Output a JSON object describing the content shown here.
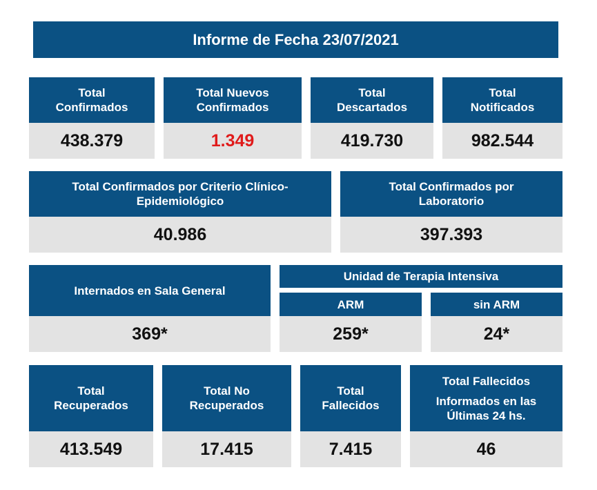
{
  "title": "Informe de Fecha 23/07/2021",
  "row1": [
    {
      "line1": "Total",
      "line2": "Confirmados",
      "value": "438.379"
    },
    {
      "line1": "Total Nuevos",
      "line2": "Confirmados",
      "value": "1.349",
      "value_color": "#e01b1b"
    },
    {
      "line1": "Total",
      "line2": "Descartados",
      "value": "419.730"
    },
    {
      "line1": "Total",
      "line2": "Notificados",
      "value": "982.544"
    }
  ],
  "row2": [
    {
      "line1": "Total Confirmados por Criterio Clínico-",
      "line2": "Epidemiológico",
      "value": "40.986"
    },
    {
      "line1": "Total Confirmados por",
      "line2": "Laboratorio",
      "value": "397.393"
    }
  ],
  "row3": {
    "sala_general": {
      "label": "Internados en Sala General",
      "value": "369*"
    },
    "uti_header": "Unidad de Terapia Intensiva",
    "arm": {
      "label": "ARM",
      "value": "259*"
    },
    "sin_arm": {
      "label": "sin ARM",
      "value": "24*"
    }
  },
  "row4": [
    {
      "line1": "Total",
      "line2": "Recuperados",
      "value": "413.549"
    },
    {
      "line1": "Total No",
      "line2": "Recuperados",
      "value": "17.415"
    },
    {
      "line1": "Total",
      "line2": "Fallecidos",
      "value": "7.415"
    },
    {
      "line1": "Total Fallecidos",
      "line2": "Informados en las",
      "line3": "Últimas 24 hs.",
      "value": "46"
    }
  ],
  "colors": {
    "header_bg": "#0b5183",
    "value_bg": "#e3e3e3",
    "highlight": "#e01b1b"
  }
}
